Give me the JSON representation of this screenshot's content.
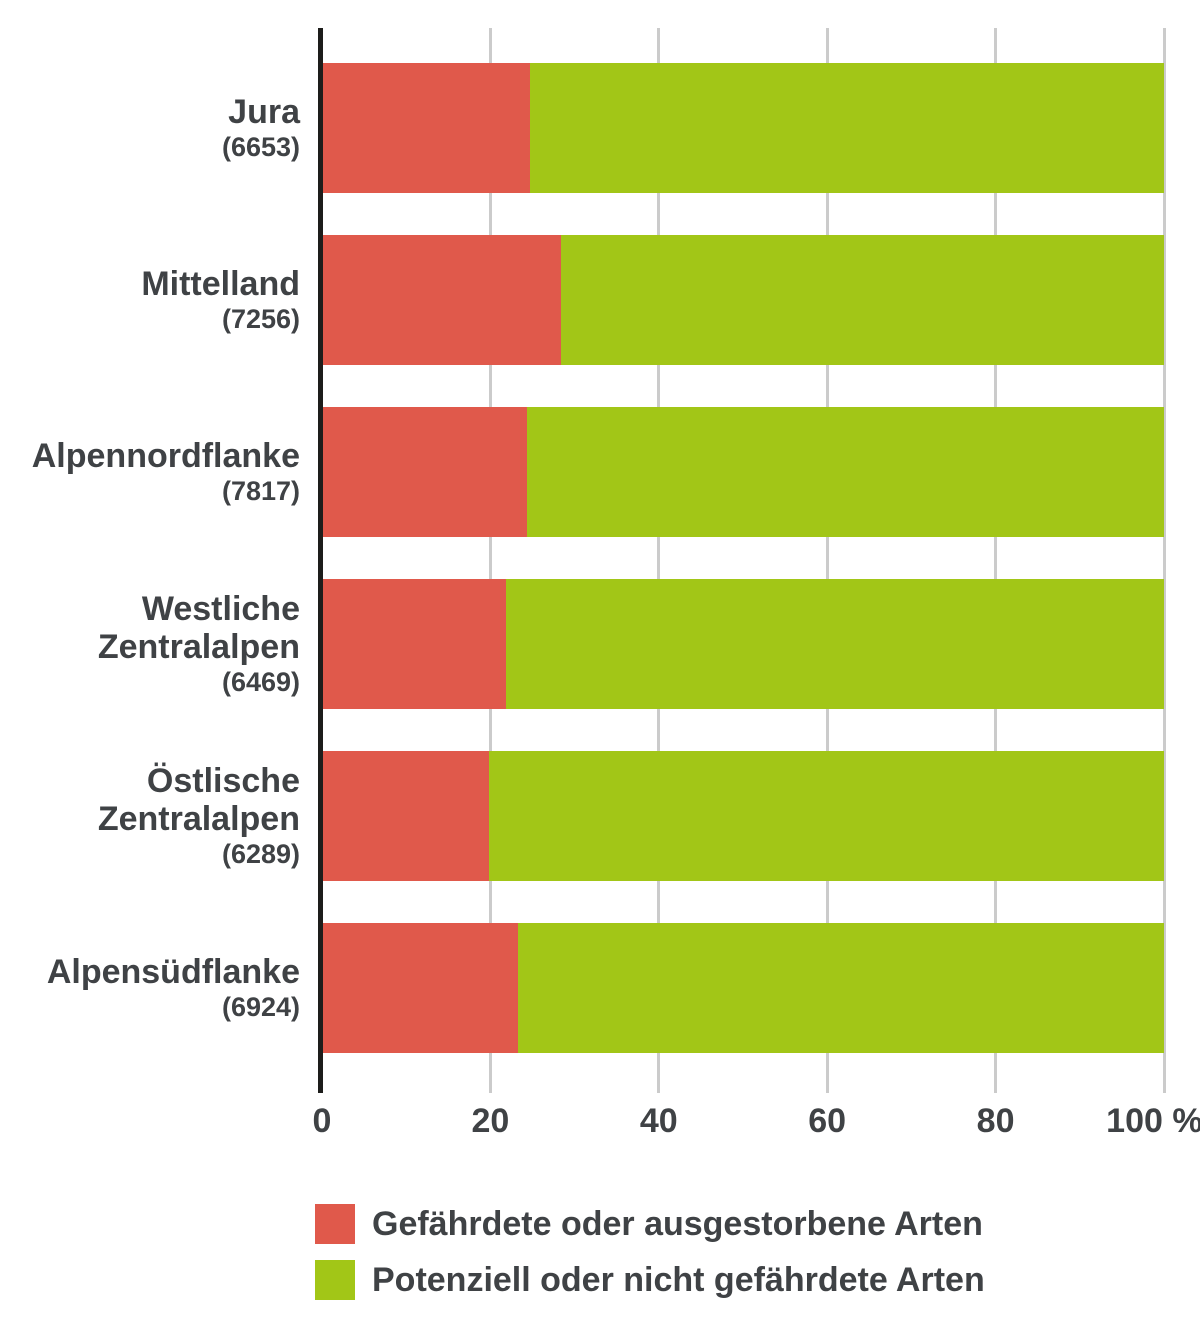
{
  "chart_data": {
    "type": "bar",
    "orientation": "horizontal-stacked",
    "title": "",
    "xlabel": "",
    "ylabel": "",
    "unit": "%",
    "categories": [
      {
        "lines": [
          "Jura"
        ],
        "count_label": "(6653)"
      },
      {
        "lines": [
          "Mittelland"
        ],
        "count_label": "(7256)"
      },
      {
        "lines": [
          "Alpennordflanke"
        ],
        "count_label": "(7817)"
      },
      {
        "lines": [
          "Westliche",
          "Zentralalpen"
        ],
        "count_label": "(6469)"
      },
      {
        "lines": [
          "Östlische",
          "Zentralalpen"
        ],
        "count_label": "(6289)"
      },
      {
        "lines": [
          "Alpensüdflanke"
        ],
        "count_label": "(6924)"
      }
    ],
    "series": [
      {
        "name": "Gefährdete oder ausgestorbene Arten",
        "color": "#e0594b",
        "values": [
          24.7,
          28.4,
          24.3,
          21.9,
          19.8,
          23.3
        ]
      },
      {
        "name": "Potenziell oder nicht gefährdete Arten",
        "color": "#a2c617",
        "values": [
          75.3,
          71.6,
          75.7,
          78.1,
          80.2,
          76.7
        ]
      }
    ],
    "x_axis": {
      "range": [
        0,
        100
      ],
      "tick_values": [
        0,
        20,
        40,
        60,
        80,
        100
      ],
      "tick_labels": [
        "0",
        "20",
        "40",
        "60",
        "80",
        "100 %"
      ],
      "gridlines": true
    },
    "legend": {
      "position": "bottom-left",
      "items": [
        {
          "label": "Gefährdete oder ausgestorbene Arten",
          "color": "#e0594b"
        },
        {
          "label": "Potenziell oder nicht gefährdete Arten",
          "color": "#a2c617"
        }
      ]
    },
    "style_colors": {
      "axis": "#1d1d1b",
      "gridline": "#cbcbcb",
      "text": "#3f4245",
      "background": "#ffffff"
    }
  }
}
